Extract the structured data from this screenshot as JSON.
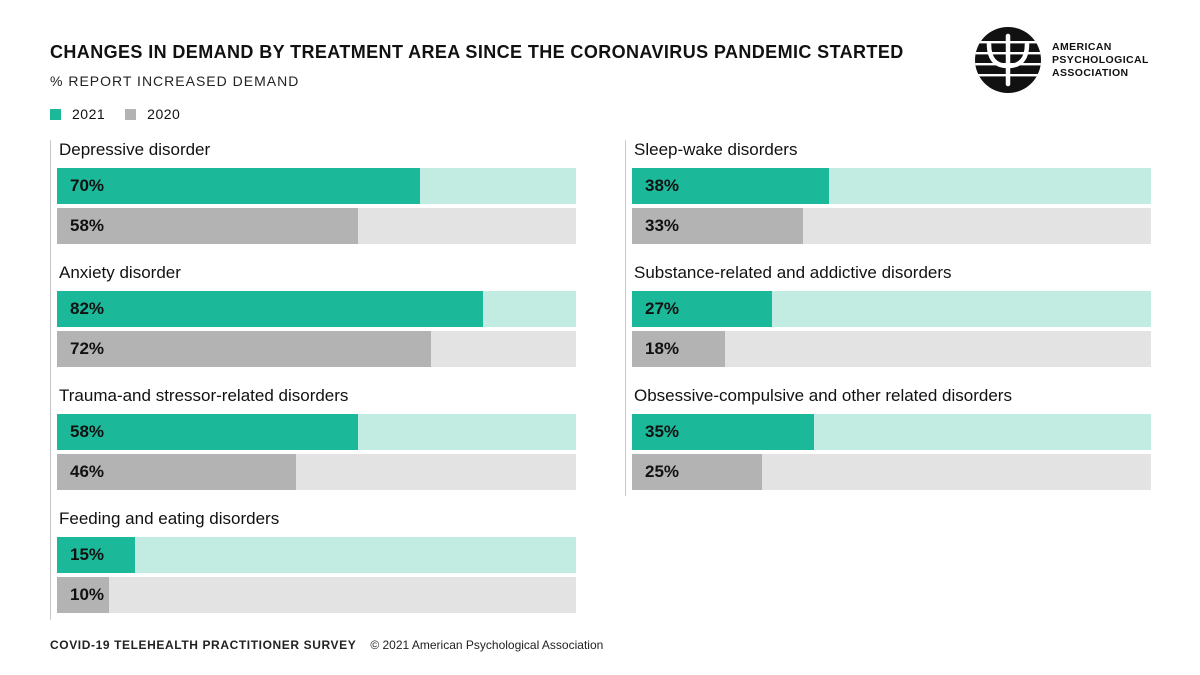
{
  "header": {
    "title": "CHANGES IN DEMAND BY TREATMENT AREA SINCE THE CORONAVIRUS PANDEMIC STARTED",
    "subtitle": "% REPORT INCREASED DEMAND"
  },
  "logo": {
    "lines": [
      "AMERICAN",
      "PSYCHOLOGICAL",
      "ASSOCIATION"
    ],
    "icon": "psi-icon"
  },
  "footer": {
    "survey": "COVID-19 TELEHEALTH PRACTITIONER SURVEY",
    "copyright": "© 2021 American Psychological Association"
  },
  "colors": {
    "series_2021": "#1bb99a",
    "series_2021_track": "#c2ebe1",
    "series_2020": "#b3b3b3",
    "series_2020_track": "#e3e3e3"
  },
  "chart_data": {
    "type": "bar",
    "orientation": "horizontal",
    "title": "CHANGES IN DEMAND BY TREATMENT AREA SINCE THE CORONAVIRUS PANDEMIC STARTED",
    "subtitle": "% REPORT INCREASED DEMAND",
    "legend": [
      "2021",
      "2020"
    ],
    "legend_position": "top-left",
    "xlim": [
      0,
      100
    ],
    "grid": false,
    "categories": [
      "Depressive disorder",
      "Anxiety disorder",
      "Trauma-and stressor-related disorders",
      "Feeding and eating disorders",
      "Sleep-wake disorders",
      "Substance-related and addictive disorders",
      "Obsessive-compulsive and other related disorders"
    ],
    "series": [
      {
        "name": "2021",
        "values": [
          70,
          82,
          58,
          15,
          38,
          27,
          35
        ],
        "labels": [
          "70%",
          "82%",
          "58%",
          "15%",
          "38%",
          "27%",
          "35%"
        ]
      },
      {
        "name": "2020",
        "values": [
          58,
          72,
          46,
          10,
          33,
          18,
          25
        ],
        "labels": [
          "58%",
          "72%",
          "46%",
          "10%",
          "33%",
          "18%",
          "25%"
        ]
      }
    ]
  }
}
